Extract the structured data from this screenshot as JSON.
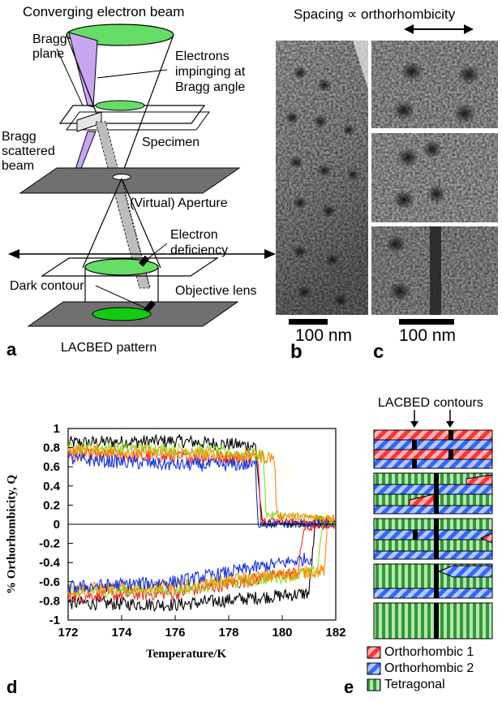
{
  "panel_a": {
    "title": "Converging electron beam",
    "bragg_plane": [
      "Bragg",
      "plane"
    ],
    "electrons_impinging": [
      "Electrons",
      "impinging at",
      "Bragg angle"
    ],
    "bragg_scattered": [
      "Bragg",
      "scattered",
      "beam"
    ],
    "specimen": "Specimen",
    "aperture": "(Virtual) Aperture",
    "electron_deficiency": [
      "Electron",
      "deficiency"
    ],
    "dark_contour": "Dark contour",
    "objective_lens": "Objective lens",
    "pattern": "LACBED pattern",
    "letter": "a"
  },
  "panel_b": {
    "scale": "100 nm",
    "letter": "b"
  },
  "panel_c": {
    "title": "Spacing ∝ orthorhombicity",
    "scale": "100 nm",
    "letter": "c"
  },
  "panel_d": {
    "letter": "d"
  },
  "panel_e": {
    "title": "LACBED contours",
    "letter": "e",
    "legend": [
      "Orthorhombic 1",
      "Orthorhombic 2",
      "Tetragonal"
    ]
  },
  "colors": {
    "purple": "#c9a6f2",
    "green": "#66dd66",
    "ortho1": "#ff3333",
    "ortho2": "#3366ff",
    "tetragonal": "#339933",
    "gray_plane": "#6b6b6b"
  },
  "chart_data": {
    "type": "line",
    "xlabel": "Temperature/K",
    "ylabel": "% Orthorhombicity, Q",
    "xlim": [
      172,
      182
    ],
    "ylim": [
      -1,
      1
    ],
    "xticks": [
      "172",
      "174",
      "176",
      "178",
      "180",
      "182"
    ],
    "yticks": [
      "1",
      "0.8",
      "0.6",
      "0.4",
      "0.2",
      "0",
      "-0.2",
      "-0.4",
      "-0.6",
      "-0.8",
      "-1"
    ],
    "legend": "none",
    "series": [
      {
        "color": "#000000",
        "upper": [
          [
            172,
            0.85
          ],
          [
            176,
            0.87
          ],
          [
            179,
            0.82
          ],
          [
            179.25,
            0.0
          ],
          [
            182,
            0.0
          ]
        ],
        "lower": [
          [
            172,
            -0.82
          ],
          [
            176,
            -0.84
          ],
          [
            181,
            -0.72
          ],
          [
            181.25,
            0.05
          ],
          [
            182,
            0.02
          ]
        ]
      },
      {
        "color": "#ff2222",
        "upper": [
          [
            172,
            0.73
          ],
          [
            176,
            0.7
          ],
          [
            179.1,
            0.7
          ],
          [
            179.2,
            0.05
          ],
          [
            182,
            0.0
          ]
        ],
        "lower": [
          [
            172,
            -0.75
          ],
          [
            176,
            -0.72
          ],
          [
            180.6,
            -0.5
          ],
          [
            180.8,
            -0.05
          ],
          [
            182,
            0.0
          ]
        ]
      },
      {
        "color": "#88dd22",
        "upper": [
          [
            172,
            0.8
          ],
          [
            176,
            0.78
          ],
          [
            179.3,
            0.72
          ],
          [
            179.4,
            0.1
          ],
          [
            182,
            0.05
          ]
        ],
        "lower": [
          [
            172,
            -0.7
          ],
          [
            176,
            -0.68
          ],
          [
            181.3,
            -0.5
          ],
          [
            181.5,
            0.0
          ],
          [
            182,
            0.0
          ]
        ]
      },
      {
        "color": "#ff8800",
        "upper": [
          [
            172,
            0.78
          ],
          [
            176,
            0.74
          ],
          [
            179.7,
            0.7
          ],
          [
            179.8,
            0.1
          ],
          [
            182,
            0.05
          ]
        ],
        "lower": [
          [
            172,
            -0.68
          ],
          [
            176,
            -0.65
          ],
          [
            181.6,
            -0.48
          ],
          [
            181.7,
            0.1
          ],
          [
            182,
            0.05
          ]
        ]
      },
      {
        "color": "#1133dd",
        "upper": [
          [
            172,
            0.68
          ],
          [
            176,
            0.62
          ],
          [
            179.0,
            0.62
          ],
          [
            179.1,
            0.0
          ],
          [
            182,
            0.0
          ]
        ],
        "lower": [
          [
            172,
            -0.66
          ],
          [
            176,
            -0.6
          ],
          [
            181.1,
            -0.35
          ],
          [
            181.1,
            -0.35
          ]
        ]
      }
    ]
  }
}
